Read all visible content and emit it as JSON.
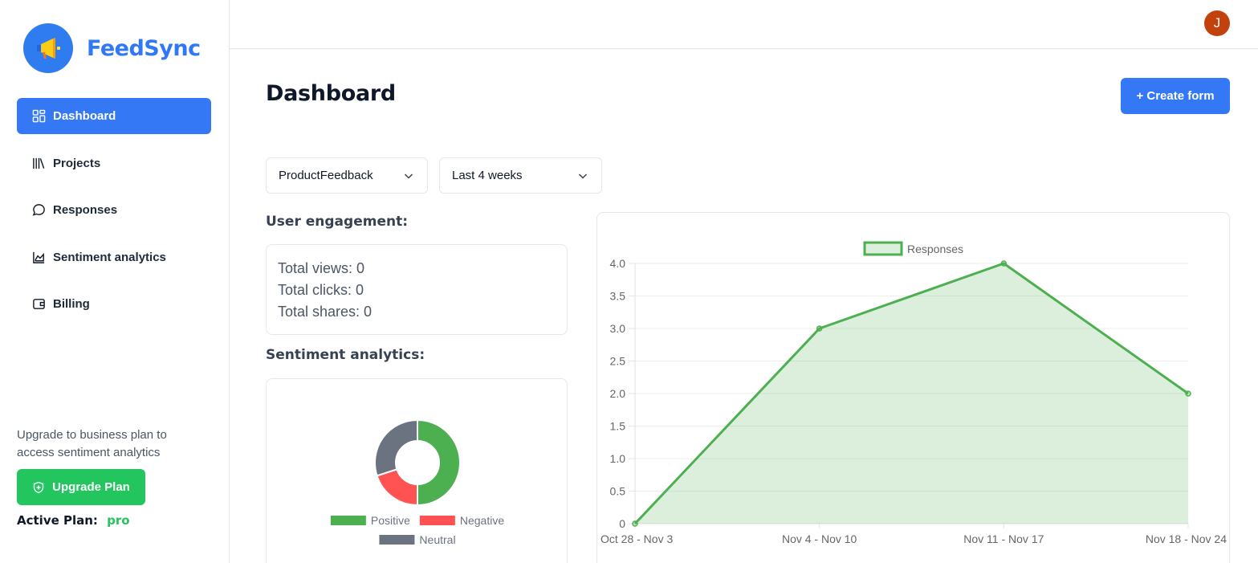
{
  "app": {
    "name": "FeedSync",
    "brand_color": "#3178f6",
    "logo_icon": "megaphone-icon"
  },
  "sidebar": {
    "items": [
      {
        "label": "Dashboard",
        "icon": "grid-icon",
        "active": true
      },
      {
        "label": "Projects",
        "icon": "books-icon",
        "active": false
      },
      {
        "label": "Responses",
        "icon": "chat-bubble-icon",
        "active": false
      },
      {
        "label": "Sentiment analytics",
        "icon": "area-chart-icon",
        "active": false
      },
      {
        "label": "Billing",
        "icon": "wallet-icon",
        "active": false
      }
    ],
    "upgrade_text": "Upgrade to business plan to access sentiment analytics",
    "upgrade_button": "Upgrade Plan",
    "active_plan_label": "Active Plan:",
    "active_plan_value": "pro"
  },
  "topbar": {
    "avatar_initial": "J",
    "avatar_color": "#c2410c"
  },
  "main": {
    "title": "Dashboard",
    "create_button": "+ Create form",
    "filters": {
      "project": "ProductFeedback",
      "range": "Last 4 weeks"
    },
    "engagement": {
      "heading": "User engagement:",
      "lines": [
        "Total views: 0",
        "Total clicks: 0",
        "Total shares: 0"
      ]
    },
    "sentiment": {
      "heading": "Sentiment analytics:"
    }
  },
  "chart_data": [
    {
      "type": "pie",
      "variant": "doughnut",
      "labels": [
        "Positive",
        "Negative",
        "Neutral"
      ],
      "values": [
        50,
        20,
        30
      ],
      "colors": [
        "#4caf50",
        "#ff5252",
        "#6b7280"
      ],
      "legend": "bottom"
    },
    {
      "type": "area",
      "categories": [
        "Oct 28 - Nov 3",
        "Nov 4 - Nov 10",
        "Nov 11 - Nov 17",
        "Nov 18 - Nov 24"
      ],
      "series": [
        {
          "name": "Responses",
          "values": [
            0,
            3,
            4,
            2
          ],
          "color": "#4caf50"
        }
      ],
      "ylim": [
        0,
        4
      ],
      "yticks": [
        "0",
        "0.5",
        "1.0",
        "1.5",
        "2.0",
        "2.5",
        "3.0",
        "3.5",
        "4.0"
      ],
      "ytick_values": [
        0,
        0.5,
        1,
        1.5,
        2,
        2.5,
        3,
        3.5,
        4
      ],
      "grid": true,
      "legend": "top"
    }
  ]
}
